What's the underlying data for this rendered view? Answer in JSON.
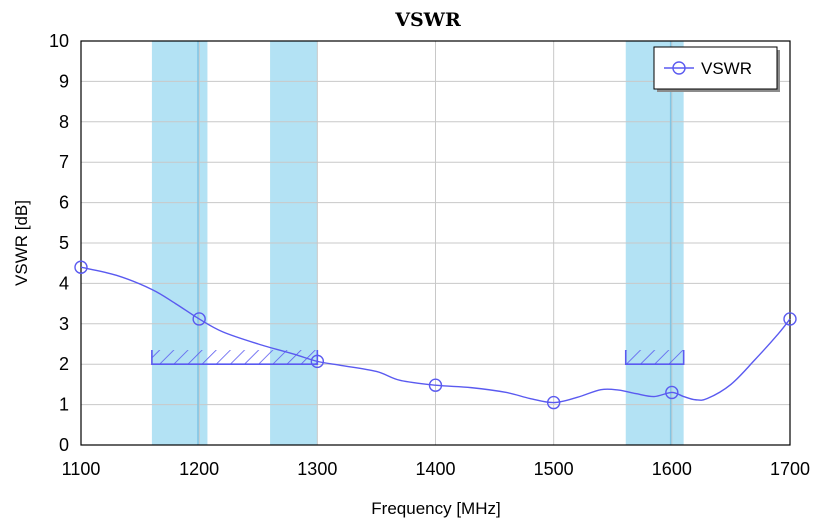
{
  "chart_data": {
    "type": "line",
    "title": "VSWR",
    "xlabel": "Frequency [MHz]",
    "ylabel": "VSWR [dB]",
    "xlim": [
      1100,
      1700
    ],
    "ylim": [
      0,
      10
    ],
    "xticks": [
      1100,
      1200,
      1300,
      1400,
      1500,
      1600,
      1700
    ],
    "yticks": [
      0,
      1,
      2,
      3,
      4,
      5,
      6,
      7,
      8,
      9,
      10
    ],
    "grid": true,
    "legend": {
      "position": "top-right",
      "entries": [
        "VSWR"
      ]
    },
    "series": [
      {
        "name": "VSWR",
        "color": "#5a5af0",
        "curve": [
          [
            1100,
            4.4
          ],
          [
            1130,
            4.2
          ],
          [
            1160,
            3.85
          ],
          [
            1180,
            3.5
          ],
          [
            1200,
            3.12
          ],
          [
            1220,
            2.8
          ],
          [
            1250,
            2.5
          ],
          [
            1280,
            2.25
          ],
          [
            1300,
            2.07
          ],
          [
            1320,
            1.97
          ],
          [
            1350,
            1.82
          ],
          [
            1370,
            1.6
          ],
          [
            1400,
            1.48
          ],
          [
            1430,
            1.42
          ],
          [
            1460,
            1.3
          ],
          [
            1480,
            1.15
          ],
          [
            1500,
            1.05
          ],
          [
            1520,
            1.18
          ],
          [
            1540,
            1.37
          ],
          [
            1555,
            1.36
          ],
          [
            1570,
            1.27
          ],
          [
            1585,
            1.2
          ],
          [
            1600,
            1.3
          ],
          [
            1610,
            1.2
          ],
          [
            1620,
            1.12
          ],
          [
            1630,
            1.15
          ],
          [
            1650,
            1.5
          ],
          [
            1670,
            2.1
          ],
          [
            1690,
            2.75
          ],
          [
            1700,
            3.12
          ]
        ],
        "markers": [
          [
            1100,
            4.4
          ],
          [
            1200,
            3.12
          ],
          [
            1300,
            2.07
          ],
          [
            1400,
            1.48
          ],
          [
            1500,
            1.05
          ],
          [
            1600,
            1.3
          ],
          [
            1700,
            3.12
          ]
        ]
      }
    ],
    "bands": [
      {
        "x": [
          1160,
          1207
        ],
        "color": "#b3e2f4"
      },
      {
        "x": [
          1260,
          1300
        ],
        "color": "#b3e2f4"
      },
      {
        "x": [
          1561,
          1610
        ],
        "color": "#b3e2f4"
      }
    ],
    "band_lines": [
      1199,
      1599
    ],
    "limit_masks": [
      {
        "x": [
          1160,
          1300
        ],
        "y": 2.0,
        "hatch_to": 2.35
      },
      {
        "x": [
          1561,
          1610
        ],
        "y": 2.0,
        "hatch_to": 2.35
      }
    ]
  }
}
